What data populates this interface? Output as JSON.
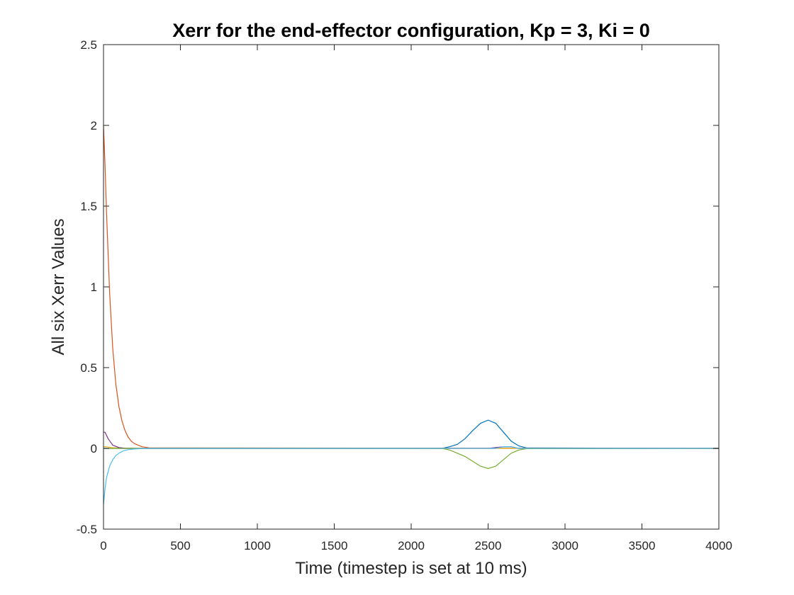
{
  "chart_data": {
    "type": "line",
    "title": "Xerr for the end-effector configuration, Kp = 3, Ki = 0",
    "xlabel": "Time (timestep is set at 10 ms)",
    "ylabel": "All six Xerr Values",
    "xlim": [
      0,
      4000
    ],
    "ylim": [
      -0.5,
      2.5
    ],
    "xticks": [
      "0",
      "500",
      "1000",
      "1500",
      "2000",
      "2500",
      "3000",
      "3500",
      "4000"
    ],
    "yticks": [
      "-0.5",
      "0",
      "0.5",
      "1",
      "1.5",
      "2",
      "2.5"
    ],
    "grid": false,
    "legend": "none",
    "series": [
      {
        "color": "#0072BD",
        "x": [
          0,
          100,
          200,
          2200,
          2250,
          2300,
          2350,
          2400,
          2450,
          2500,
          2550,
          2600,
          2650,
          2700,
          2750,
          4000
        ],
        "y": [
          0,
          0,
          0,
          0,
          0.01,
          0.025,
          0.06,
          0.11,
          0.155,
          0.175,
          0.155,
          0.1,
          0.045,
          0.015,
          0.003,
          0
        ]
      },
      {
        "color": "#D95319",
        "x": [
          0,
          10,
          20,
          40,
          60,
          80,
          100,
          120,
          140,
          160,
          180,
          200,
          250,
          300,
          4000
        ],
        "y": [
          2.0,
          1.75,
          1.45,
          0.96,
          0.62,
          0.4,
          0.26,
          0.17,
          0.11,
          0.07,
          0.045,
          0.03,
          0.01,
          0.003,
          0
        ]
      },
      {
        "color": "#EDB120",
        "x": [
          0,
          20,
          50,
          100,
          200,
          4000
        ],
        "y": [
          0.01,
          0.01,
          0.005,
          0.002,
          0,
          0
        ]
      },
      {
        "color": "#7E2F8E",
        "x": [
          0,
          10,
          30,
          60,
          100,
          150,
          2500,
          2600,
          2650,
          2700,
          4000
        ],
        "y": [
          0.1,
          0.1,
          0.06,
          0.02,
          0.005,
          0,
          0,
          0.01,
          0.01,
          0,
          0
        ]
      },
      {
        "color": "#77AC30",
        "x": [
          0,
          2200,
          2250,
          2300,
          2350,
          2400,
          2450,
          2500,
          2550,
          2600,
          2650,
          2700,
          2750,
          4000
        ],
        "y": [
          0,
          0,
          -0.01,
          -0.03,
          -0.05,
          -0.08,
          -0.11,
          -0.125,
          -0.11,
          -0.07,
          -0.03,
          -0.01,
          -0.002,
          0
        ]
      },
      {
        "color": "#4DBEEE",
        "x": [
          0,
          10,
          20,
          40,
          60,
          80,
          100,
          130,
          160,
          200,
          250,
          300,
          2550,
          2600,
          2650,
          2700,
          4000
        ],
        "y": [
          -0.35,
          -0.25,
          -0.18,
          -0.11,
          -0.07,
          -0.045,
          -0.03,
          -0.015,
          -0.008,
          -0.004,
          -0.001,
          0,
          0,
          0.01,
          0.01,
          0,
          0
        ]
      }
    ]
  }
}
